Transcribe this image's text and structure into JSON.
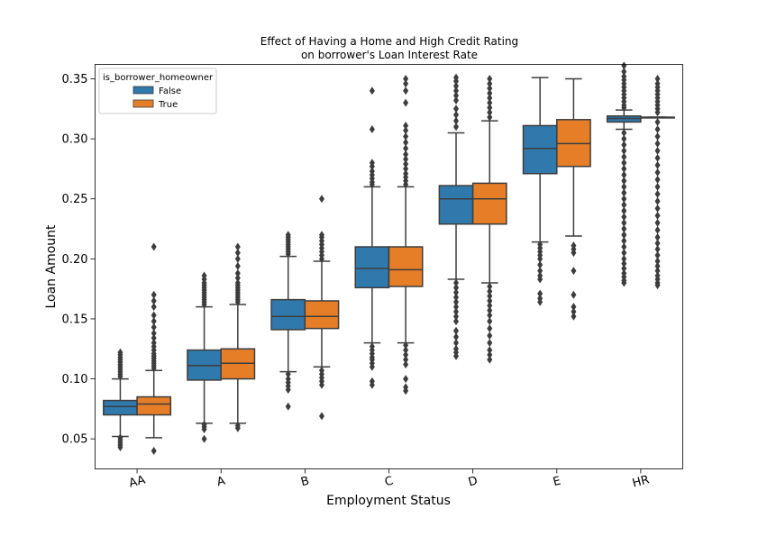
{
  "chart_data": {
    "type": "box",
    "title": "Effect of Having a Home and High Credit Rating\non borrower's Loan Interest Rate",
    "title_lines": [
      "Effect of Having a Home and High Credit Rating",
      "on borrower's Loan Interest Rate"
    ],
    "xlabel": "Employment Status",
    "ylabel": "Loan Amount",
    "categories": [
      "AA",
      "A",
      "B",
      "C",
      "D",
      "E",
      "HR"
    ],
    "ylim": [
      0.025,
      0.362
    ],
    "yticks": [
      0.05,
      0.1,
      0.15,
      0.2,
      0.25,
      0.3,
      0.35
    ],
    "ytick_labels": [
      "0.05",
      "0.10",
      "0.15",
      "0.20",
      "0.25",
      "0.30",
      "0.35"
    ],
    "grid": false,
    "legend": {
      "title": "is_borrower_homeowner",
      "placement": "top-left",
      "entries": [
        {
          "label": "False",
          "color": "#2f79ad"
        },
        {
          "label": "True",
          "color": "#e57e27"
        }
      ]
    },
    "series": [
      {
        "name": "False",
        "color": "#2f79ad",
        "boxes": [
          {
            "whislo": 0.052,
            "q1": 0.07,
            "med": 0.077,
            "q3": 0.082,
            "whishi": 0.1,
            "fliers": [
              0.043,
              0.045,
              0.047,
              0.049,
              0.051,
              0.102,
              0.104,
              0.106,
              0.108,
              0.11,
              0.112,
              0.114,
              0.116,
              0.118,
              0.12,
              0.122
            ]
          },
          {
            "whislo": 0.063,
            "q1": 0.099,
            "med": 0.111,
            "q3": 0.124,
            "whishi": 0.16,
            "fliers": [
              0.05,
              0.058,
              0.06,
              0.062,
              0.162,
              0.164,
              0.166,
              0.168,
              0.17,
              0.172,
              0.174,
              0.176,
              0.178,
              0.18,
              0.183,
              0.186
            ]
          },
          {
            "whislo": 0.106,
            "q1": 0.141,
            "med": 0.152,
            "q3": 0.166,
            "whishi": 0.202,
            "fliers": [
              0.077,
              0.091,
              0.094,
              0.097,
              0.1,
              0.104,
              0.204,
              0.206,
              0.208,
              0.21,
              0.212,
              0.214,
              0.216,
              0.218,
              0.22
            ]
          },
          {
            "whislo": 0.13,
            "q1": 0.176,
            "med": 0.192,
            "q3": 0.21,
            "whishi": 0.26,
            "fliers": [
              0.095,
              0.098,
              0.11,
              0.113,
              0.116,
              0.118,
              0.121,
              0.124,
              0.127,
              0.262,
              0.264,
              0.267,
              0.27,
              0.273,
              0.277,
              0.28,
              0.308,
              0.34
            ]
          },
          {
            "whislo": 0.183,
            "q1": 0.229,
            "med": 0.25,
            "q3": 0.261,
            "whishi": 0.305,
            "fliers": [
              0.119,
              0.122,
              0.125,
              0.13,
              0.135,
              0.14,
              0.148,
              0.152,
              0.156,
              0.16,
              0.164,
              0.168,
              0.172,
              0.176,
              0.18,
              0.31,
              0.315,
              0.32,
              0.325,
              0.332,
              0.336,
              0.34,
              0.344,
              0.348,
              0.351
            ]
          },
          {
            "whislo": 0.214,
            "q1": 0.271,
            "med": 0.292,
            "q3": 0.311,
            "whishi": 0.351,
            "fliers": [
              0.164,
              0.167,
              0.171,
              0.183,
              0.186,
              0.19,
              0.195,
              0.2,
              0.203,
              0.206,
              0.209,
              0.212
            ]
          },
          {
            "whislo": 0.308,
            "q1": 0.314,
            "med": 0.317,
            "q3": 0.319,
            "whishi": 0.324,
            "fliers": [
              0.18,
              0.182,
              0.185,
              0.188,
              0.192,
              0.196,
              0.2,
              0.205,
              0.21,
              0.215,
              0.22,
              0.225,
              0.23,
              0.235,
              0.24,
              0.245,
              0.25,
              0.255,
              0.26,
              0.265,
              0.27,
              0.275,
              0.28,
              0.285,
              0.29,
              0.295,
              0.3,
              0.305,
              0.326,
              0.328,
              0.331,
              0.334,
              0.337,
              0.34,
              0.343,
              0.346,
              0.349,
              0.352,
              0.356,
              0.361
            ]
          }
        ]
      },
      {
        "name": "True",
        "color": "#e57e27",
        "boxes": [
          {
            "whislo": 0.051,
            "q1": 0.07,
            "med": 0.079,
            "q3": 0.085,
            "whishi": 0.107,
            "fliers": [
              0.04,
              0.109,
              0.111,
              0.113,
              0.115,
              0.117,
              0.119,
              0.121,
              0.124,
              0.127,
              0.13,
              0.134,
              0.138,
              0.143,
              0.148,
              0.153,
              0.16,
              0.165,
              0.17,
              0.21
            ]
          },
          {
            "whislo": 0.063,
            "q1": 0.1,
            "med": 0.113,
            "q3": 0.125,
            "whishi": 0.162,
            "fliers": [
              0.059,
              0.061,
              0.164,
              0.166,
              0.168,
              0.17,
              0.172,
              0.174,
              0.176,
              0.178,
              0.18,
              0.184,
              0.188,
              0.194,
              0.2,
              0.205,
              0.21
            ]
          },
          {
            "whislo": 0.11,
            "q1": 0.142,
            "med": 0.152,
            "q3": 0.165,
            "whishi": 0.198,
            "fliers": [
              0.069,
              0.095,
              0.098,
              0.101,
              0.104,
              0.107,
              0.2,
              0.203,
              0.206,
              0.209,
              0.212,
              0.215,
              0.218,
              0.22,
              0.25
            ]
          },
          {
            "whislo": 0.13,
            "q1": 0.177,
            "med": 0.191,
            "q3": 0.21,
            "whishi": 0.26,
            "fliers": [
              0.09,
              0.093,
              0.1,
              0.112,
              0.116,
              0.12,
              0.124,
              0.128,
              0.262,
              0.265,
              0.268,
              0.271,
              0.275,
              0.279,
              0.283,
              0.287,
              0.292,
              0.297,
              0.302,
              0.307,
              0.311,
              0.33,
              0.34,
              0.346,
              0.35
            ]
          },
          {
            "whislo": 0.18,
            "q1": 0.229,
            "med": 0.25,
            "q3": 0.263,
            "whishi": 0.315,
            "fliers": [
              0.116,
              0.12,
              0.124,
              0.13,
              0.136,
              0.142,
              0.148,
              0.153,
              0.157,
              0.161,
              0.165,
              0.169,
              0.173,
              0.177,
              0.318,
              0.322,
              0.326,
              0.33,
              0.334,
              0.338,
              0.342,
              0.346,
              0.35
            ]
          },
          {
            "whislo": 0.219,
            "q1": 0.277,
            "med": 0.296,
            "q3": 0.316,
            "whishi": 0.35,
            "fliers": [
              0.152,
              0.156,
              0.16,
              0.17,
              0.19,
              0.205,
              0.208,
              0.211
            ]
          },
          {
            "whislo": 0.318,
            "q1": 0.318,
            "med": 0.318,
            "q3": 0.318,
            "whishi": 0.318,
            "fliers": [
              0.178,
              0.18,
              0.183,
              0.186,
              0.19,
              0.194,
              0.198,
              0.203,
              0.208,
              0.213,
              0.218,
              0.224,
              0.23,
              0.236,
              0.242,
              0.248,
              0.254,
              0.26,
              0.266,
              0.272,
              0.278,
              0.284,
              0.29,
              0.296,
              0.302,
              0.308,
              0.314,
              0.322,
              0.325,
              0.328,
              0.331,
              0.334,
              0.337,
              0.34,
              0.343,
              0.346,
              0.35
            ]
          }
        ]
      }
    ]
  }
}
